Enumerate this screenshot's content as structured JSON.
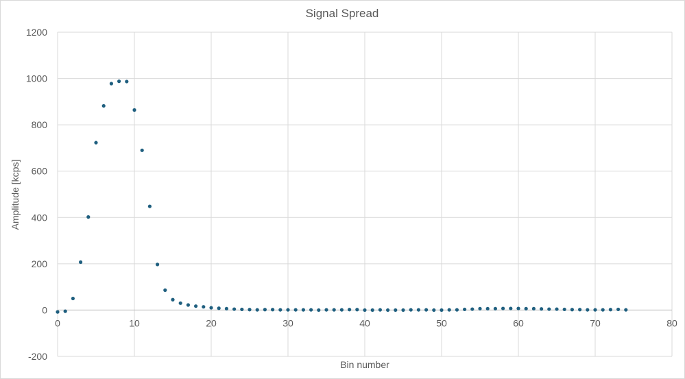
{
  "chart_data": {
    "type": "scatter",
    "title": "Signal Spread",
    "xlabel": "Bin number",
    "ylabel": "Amplitude [kcps]",
    "xlim": [
      0,
      80
    ],
    "ylim": [
      -200,
      1200
    ],
    "xticks": [
      0,
      10,
      20,
      30,
      40,
      50,
      60,
      70,
      80
    ],
    "yticks": [
      -200,
      0,
      200,
      400,
      600,
      800,
      1000,
      1200
    ],
    "grid": true,
    "legend": "none",
    "marker_color": "#1f5f7f",
    "series": [
      {
        "x": [
          0,
          1,
          2,
          3,
          4,
          5,
          6,
          7,
          8,
          9,
          10,
          11,
          12,
          13,
          14,
          15,
          16,
          17,
          18,
          19,
          20,
          21,
          22,
          23,
          24,
          25,
          26,
          27,
          28,
          29,
          30,
          31,
          32,
          33,
          34,
          35,
          36,
          37,
          38,
          39,
          40,
          41,
          42,
          43,
          44,
          45,
          46,
          47,
          48,
          49,
          50,
          51,
          52,
          53,
          54,
          55,
          56,
          57,
          58,
          59,
          60,
          61,
          62,
          63,
          64,
          65,
          66,
          67,
          68,
          69,
          70,
          71,
          72,
          73,
          74
        ],
        "y": [
          -8,
          -5,
          50,
          207,
          402,
          723,
          882,
          978,
          988,
          987,
          864,
          690,
          448,
          197,
          86,
          45,
          30,
          22,
          17,
          14,
          10,
          8,
          6,
          4,
          3,
          2,
          1,
          2,
          2,
          1,
          1,
          1,
          1,
          1,
          0,
          1,
          1,
          1,
          2,
          2,
          0,
          0,
          1,
          0,
          0,
          0,
          1,
          1,
          1,
          0,
          0,
          1,
          1,
          3,
          4,
          6,
          6,
          6,
          7,
          7,
          7,
          6,
          6,
          5,
          4,
          4,
          3,
          2,
          2,
          1,
          1,
          1,
          2,
          3,
          1
        ]
      }
    ]
  }
}
